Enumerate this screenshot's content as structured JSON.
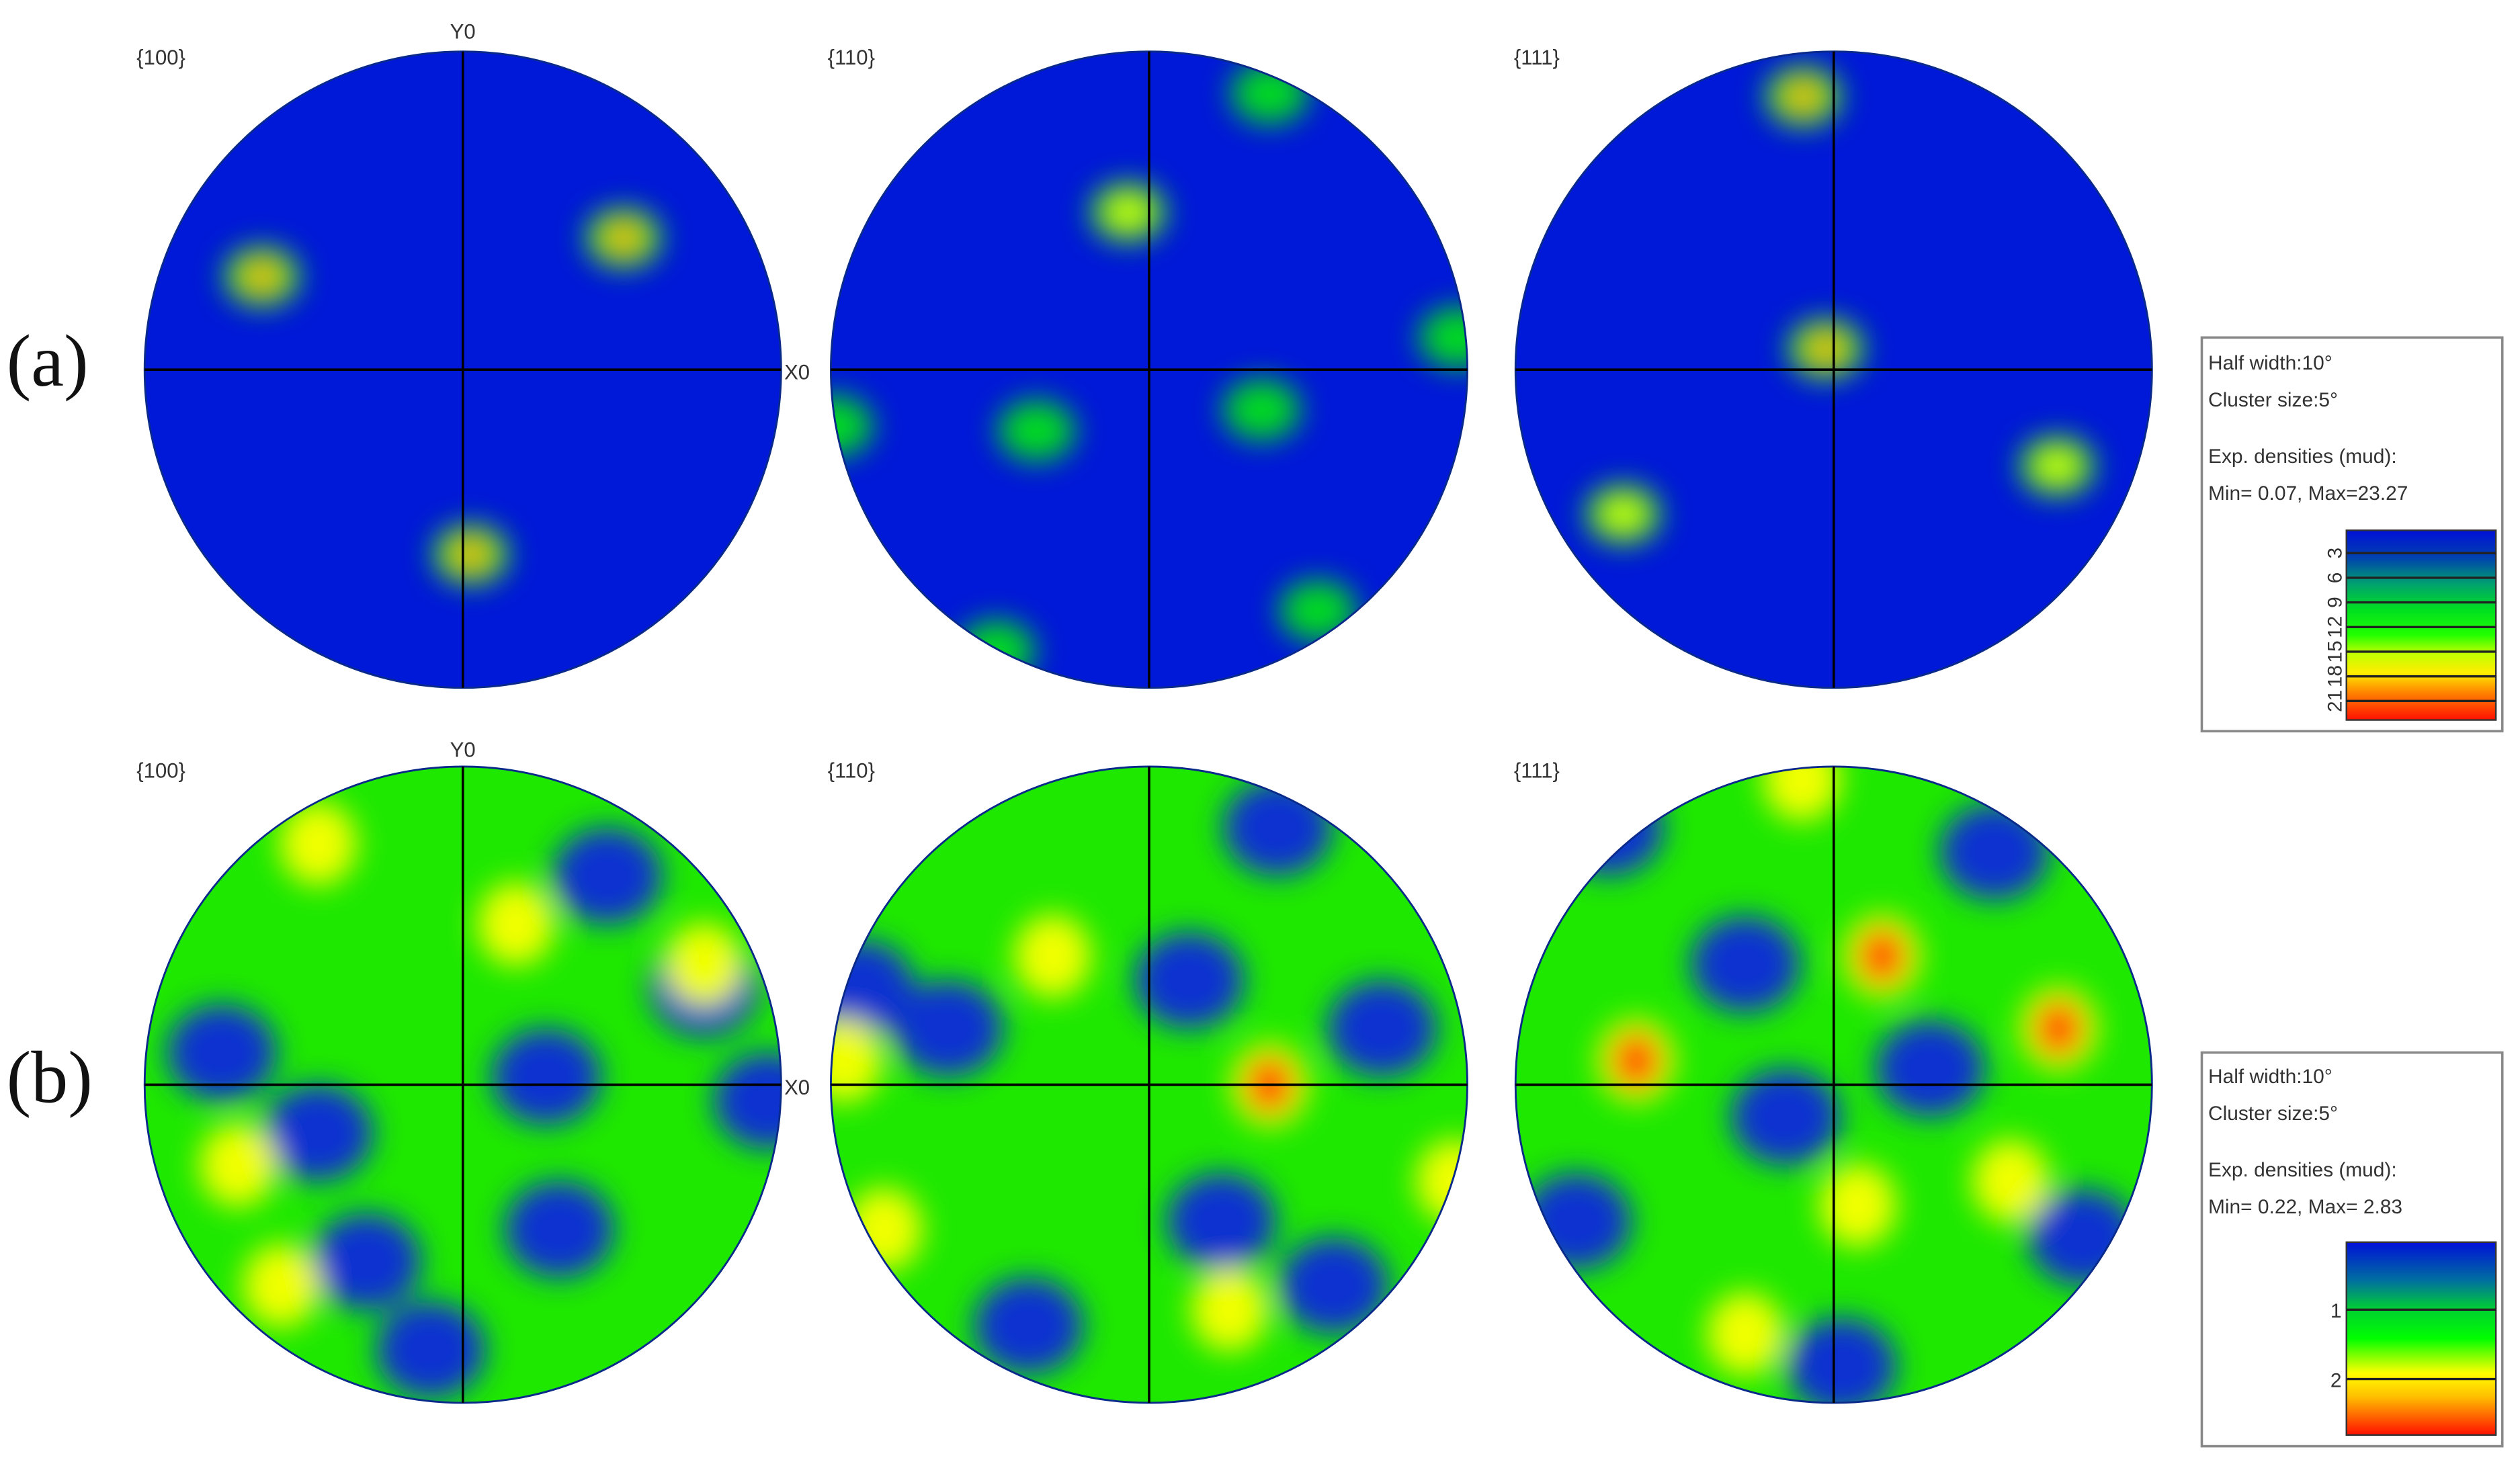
{
  "chart_data": [
    {
      "type": "heatmap",
      "panel_label": "(a)",
      "plots": [
        {
          "title": "{100}",
          "y_axis_label": "Y0",
          "x_axis_label": "X0"
        },
        {
          "title": "{110}"
        },
        {
          "title": "{111}"
        }
      ],
      "legend": {
        "line1": "Half width:10°",
        "line2": "Cluster size:5°",
        "line3": "Exp. densities (mud):",
        "line4": "Min= 0.07, Max=23.27",
        "ticks": [
          "3",
          "6",
          "9",
          "12",
          "15",
          "18",
          "21"
        ],
        "min": 0.07,
        "max": 23.27,
        "colors": [
          "#0010d8",
          "#008a8a",
          "#00e020",
          "#10ff00",
          "#b0ff00",
          "#ffee00",
          "#ff8800",
          "#ff1800"
        ]
      }
    },
    {
      "type": "heatmap",
      "panel_label": "(b)",
      "plots": [
        {
          "title": "{100}",
          "y_axis_label": "Y0",
          "x_axis_label": "X0"
        },
        {
          "title": "{110}"
        },
        {
          "title": "{111}"
        }
      ],
      "legend": {
        "line1": "Half width:10°",
        "line2": "Cluster size:5°",
        "line3": "Exp. densities (mud):",
        "line4": "Min= 0.22, Max= 2.83",
        "ticks": [
          "1",
          "2"
        ],
        "min": 0.22,
        "max": 2.83,
        "colors": [
          "#0010d8",
          "#00a060",
          "#00f000",
          "#ffff00",
          "#ff2000"
        ]
      }
    }
  ]
}
